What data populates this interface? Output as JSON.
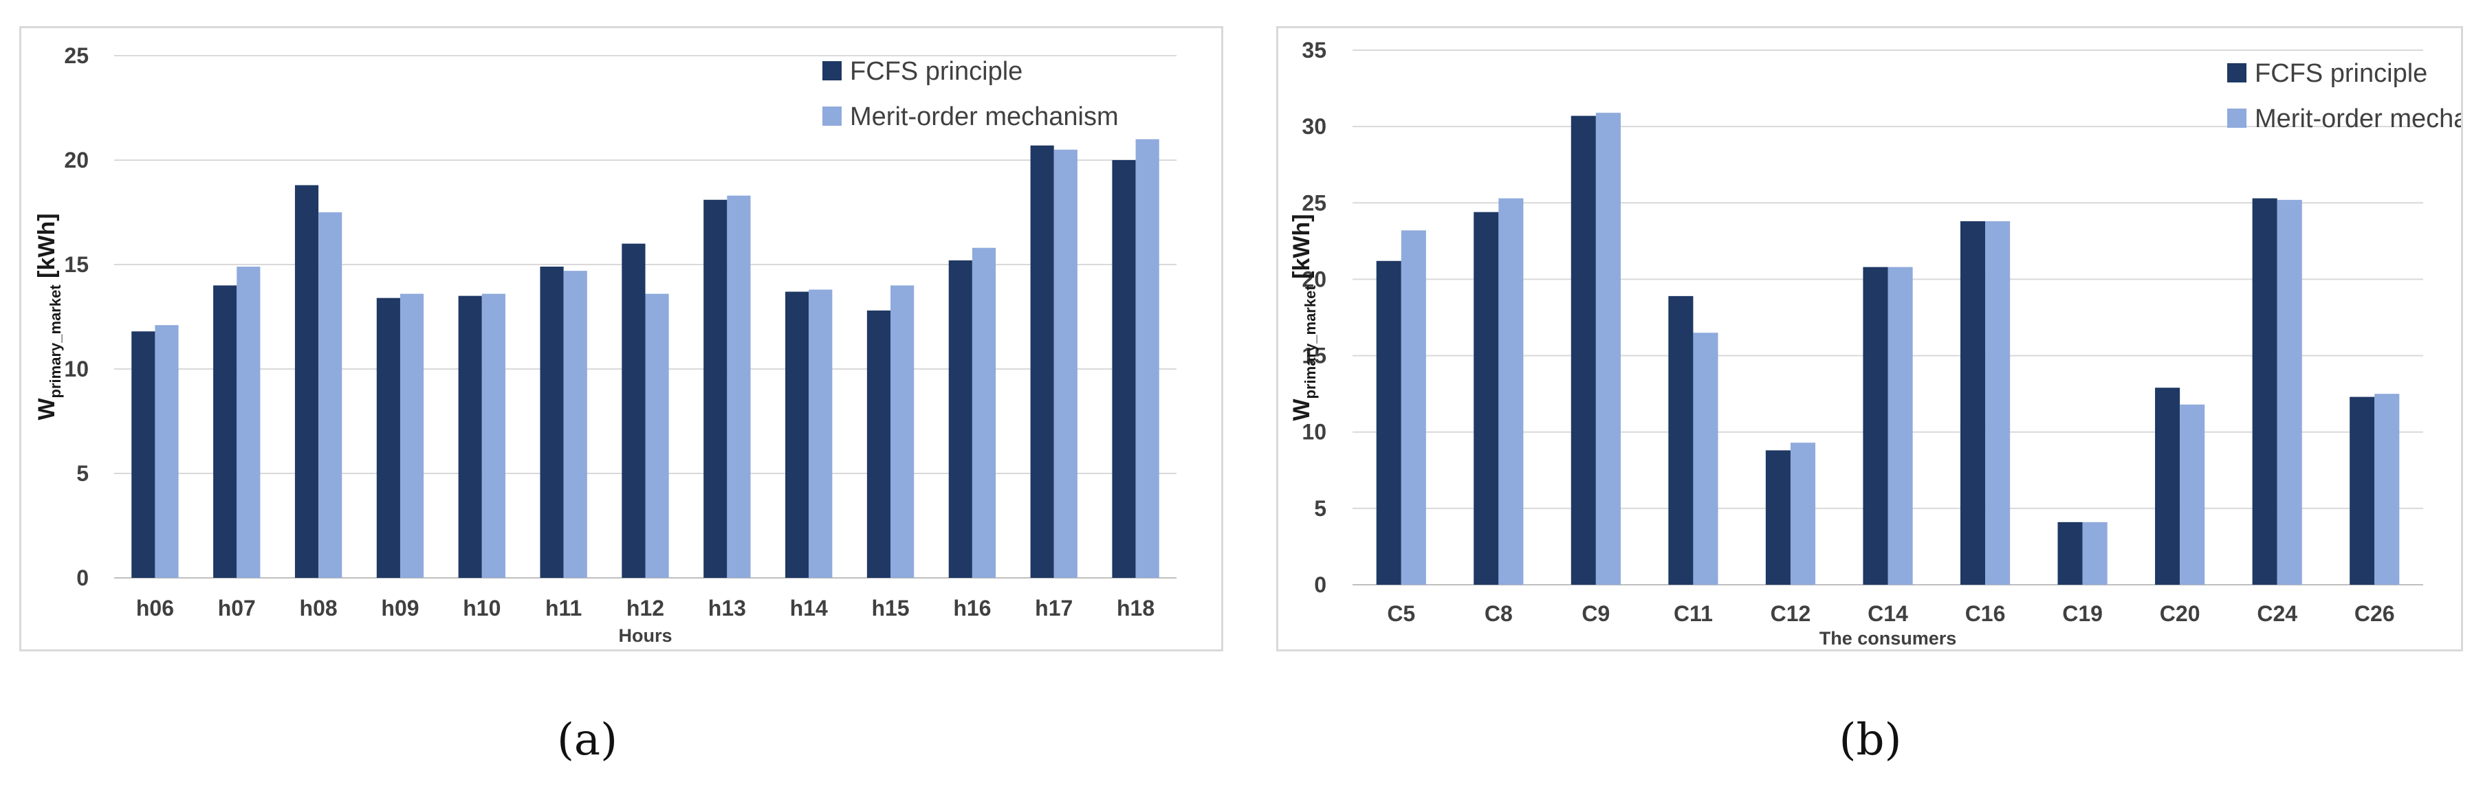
{
  "colors": {
    "fcfs": "#1f3864",
    "merit": "#8faadc",
    "grid": "#d9d9d9",
    "axis": "#bfbfbf"
  },
  "captions": {
    "a": "(a)",
    "b": "(b)"
  },
  "chart_data": [
    {
      "id": "a",
      "type": "bar",
      "title": "",
      "xlabel": "Hours",
      "ylabel_main": "W",
      "ylabel_sub": "primary_market",
      "ylabel_unit": " [kWh]",
      "ylim": [
        0,
        25
      ],
      "yticks": [
        0,
        5,
        10,
        15,
        20,
        25
      ],
      "legend_position": "top-right",
      "categories": [
        "h06",
        "h07",
        "h08",
        "h09",
        "h10",
        "h11",
        "h12",
        "h13",
        "h14",
        "h15",
        "h16",
        "h17",
        "h18"
      ],
      "series": [
        {
          "name": "FCFS principle",
          "values": [
            11.8,
            14.0,
            18.8,
            13.4,
            13.5,
            14.9,
            16.0,
            18.1,
            13.7,
            12.8,
            15.2,
            20.7,
            20.0
          ]
        },
        {
          "name": "Merit-order mechanism",
          "values": [
            12.1,
            14.9,
            17.5,
            13.6,
            13.6,
            14.7,
            13.6,
            18.3,
            13.8,
            14.0,
            15.8,
            20.5,
            21.0
          ]
        }
      ]
    },
    {
      "id": "b",
      "type": "bar",
      "title": "",
      "xlabel": "The consumers",
      "ylabel_main": "W",
      "ylabel_sub": "primary_market",
      "ylabel_unit": " [kWh]",
      "ylim": [
        0,
        35
      ],
      "yticks": [
        0,
        5,
        10,
        15,
        20,
        25,
        30,
        35
      ],
      "legend_position": "top-right",
      "categories": [
        "C5",
        "C8",
        "C9",
        "C11",
        "C12",
        "C14",
        "C16",
        "C19",
        "C20",
        "C24",
        "C26"
      ],
      "series": [
        {
          "name": "FCFS principle",
          "values": [
            21.2,
            24.4,
            30.7,
            18.9,
            8.8,
            20.8,
            23.8,
            4.1,
            12.9,
            25.3,
            12.3
          ]
        },
        {
          "name": "Merit-order mechanism",
          "values": [
            23.2,
            25.3,
            30.9,
            16.5,
            9.3,
            20.8,
            23.8,
            4.1,
            11.8,
            25.2,
            12.5
          ]
        }
      ]
    }
  ]
}
